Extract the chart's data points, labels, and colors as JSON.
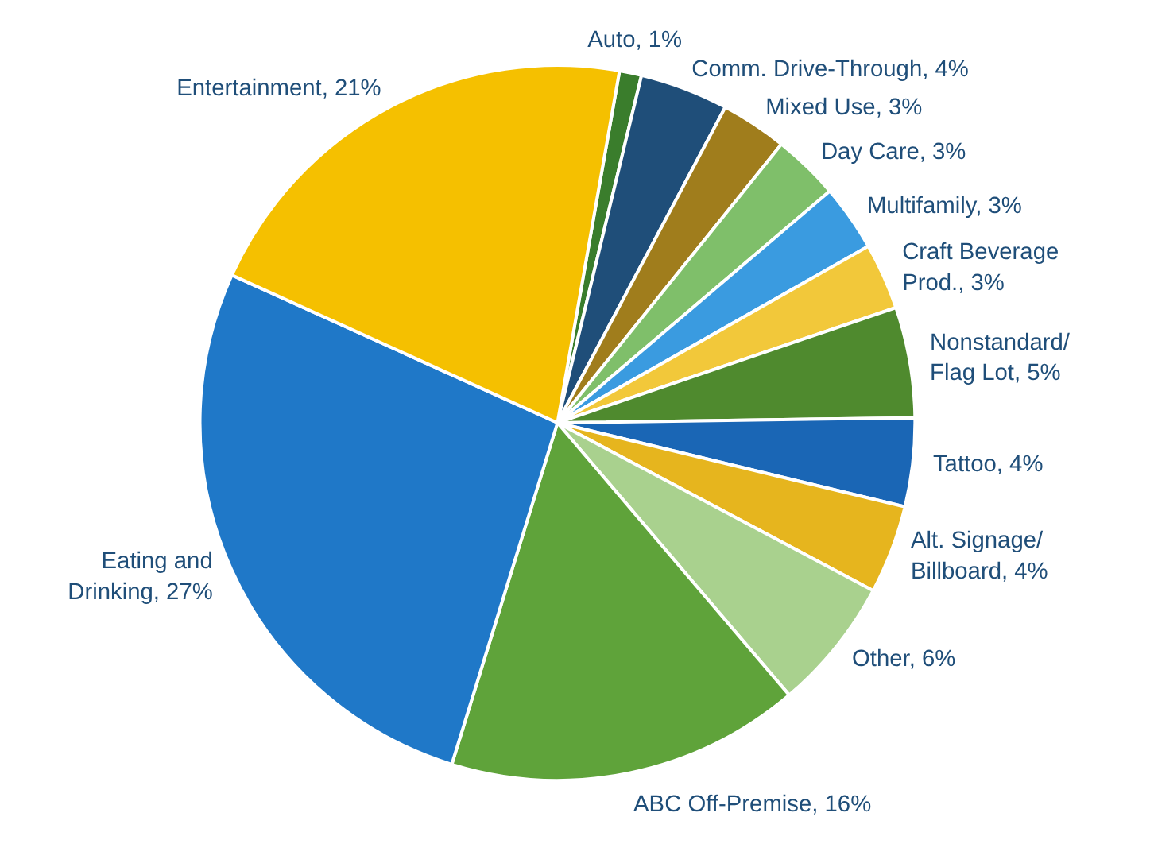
{
  "chart_data": {
    "type": "pie",
    "categories": [
      "Auto",
      "Comm. Drive-Through",
      "Mixed Use",
      "Day Care",
      "Multifamily",
      "Craft Beverage Prod.",
      "Nonstandard/Flag Lot",
      "Tattoo",
      "Alt. Signage/Billboard",
      "Other",
      "ABC Off-Premise",
      "Eating and Drinking",
      "Entertainment"
    ],
    "values": [
      1,
      4,
      3,
      3,
      3,
      3,
      5,
      4,
      4,
      6,
      16,
      27,
      21
    ],
    "value_labels": [
      "1%",
      "4%",
      "3%",
      "3%",
      "3%",
      "3%",
      "5%",
      "4%",
      "4%",
      "6%",
      "16%",
      "27%",
      "21%"
    ],
    "colors": [
      "#3a7d2c",
      "#1f4e79",
      "#a07d1c",
      "#7fbf6a",
      "#3a9be0",
      "#f2c83a",
      "#4f8a2e",
      "#1a66b5",
      "#e6b51e",
      "#a9d18e",
      "#5fa33a",
      "#1f78c8",
      "#f5c000"
    ]
  }
}
